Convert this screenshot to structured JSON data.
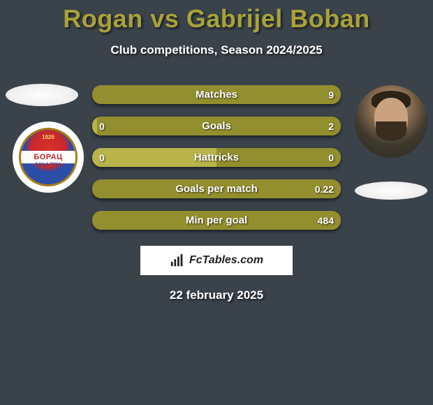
{
  "title": "Rogan vs Gabrijel Boban",
  "subtitle": "Club competitions, Season 2024/2025",
  "date": "22 february 2025",
  "watermark": "FcTables.com",
  "colors": {
    "background": "#3a424a",
    "accent": "#a8a23a",
    "bar_fill_light": "#b8b44a",
    "bar_fill_dark": "#938e2e",
    "text": "#ffffff"
  },
  "badge": {
    "year": "1926",
    "name": "БОРАЦ",
    "city": "БАЊА ЛУКА",
    "colors": {
      "top": "#c7282a",
      "bottom": "#2b4ea8",
      "band": "#ffffff",
      "ring": "#a67c1a"
    }
  },
  "bars": [
    {
      "label": "Matches",
      "left": "",
      "right": "9",
      "left_pct": 0,
      "right_pct": 100
    },
    {
      "label": "Goals",
      "left": "0",
      "right": "2",
      "left_pct": 2,
      "right_pct": 98
    },
    {
      "label": "Hattricks",
      "left": "0",
      "right": "0",
      "left_pct": 50,
      "right_pct": 50
    },
    {
      "label": "Goals per match",
      "left": "",
      "right": "0.22",
      "left_pct": 0,
      "right_pct": 100
    },
    {
      "label": "Min per goal",
      "left": "",
      "right": "484",
      "left_pct": 0,
      "right_pct": 100
    }
  ]
}
